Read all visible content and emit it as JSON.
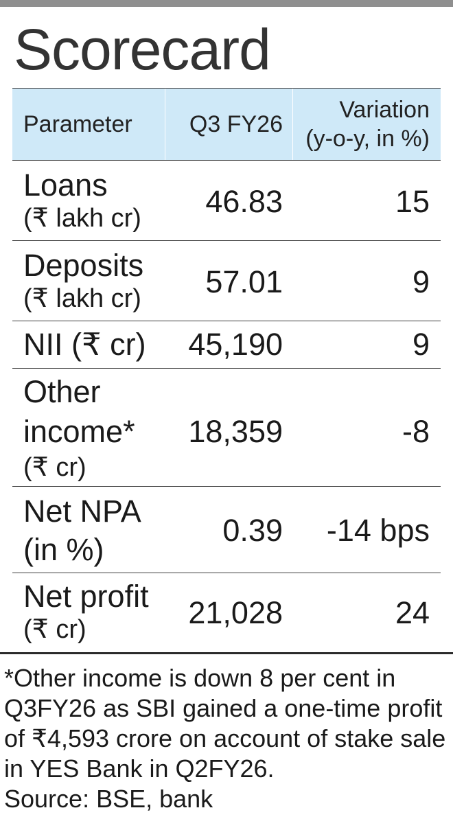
{
  "title": "Scorecard",
  "table": {
    "headers": {
      "parameter": "Parameter",
      "q3": "Q3 FY26",
      "variation_line1": "Variation",
      "variation_line2": "(y-o-y, in %)"
    },
    "rows": [
      {
        "label": "Loans",
        "sub": "(₹ lakh cr)",
        "q3": "46.83",
        "variation": "15"
      },
      {
        "label": "Deposits",
        "sub": "(₹ lakh cr)",
        "q3": "57.01",
        "variation": "9"
      },
      {
        "label": "NII (₹ cr)",
        "sub": "",
        "q3": "45,190",
        "variation": "9"
      },
      {
        "label": "Other",
        "label2": "income*",
        "sub": "(₹ cr)",
        "q3": "18,359",
        "variation": "-8"
      },
      {
        "label": "Net NPA",
        "sub": "(in %)",
        "q3": "0.39",
        "variation": "-14 bps"
      },
      {
        "label": "Net profit",
        "sub": "(₹ cr)",
        "q3": "21,028",
        "variation": "24"
      }
    ]
  },
  "footnote": {
    "line1": "*Other income is down 8 per cent in",
    "line2": "Q3FY26 as SBI gained a one-time profit",
    "line3": "of ₹4,593 crore on account of stake sale",
    "line4": "in YES Bank in Q2FY26.",
    "source": "Source: BSE, bank"
  },
  "colors": {
    "header_bg": "#cfe9f8",
    "top_rule": "#8f8f8f",
    "text": "#1a1a1a"
  }
}
